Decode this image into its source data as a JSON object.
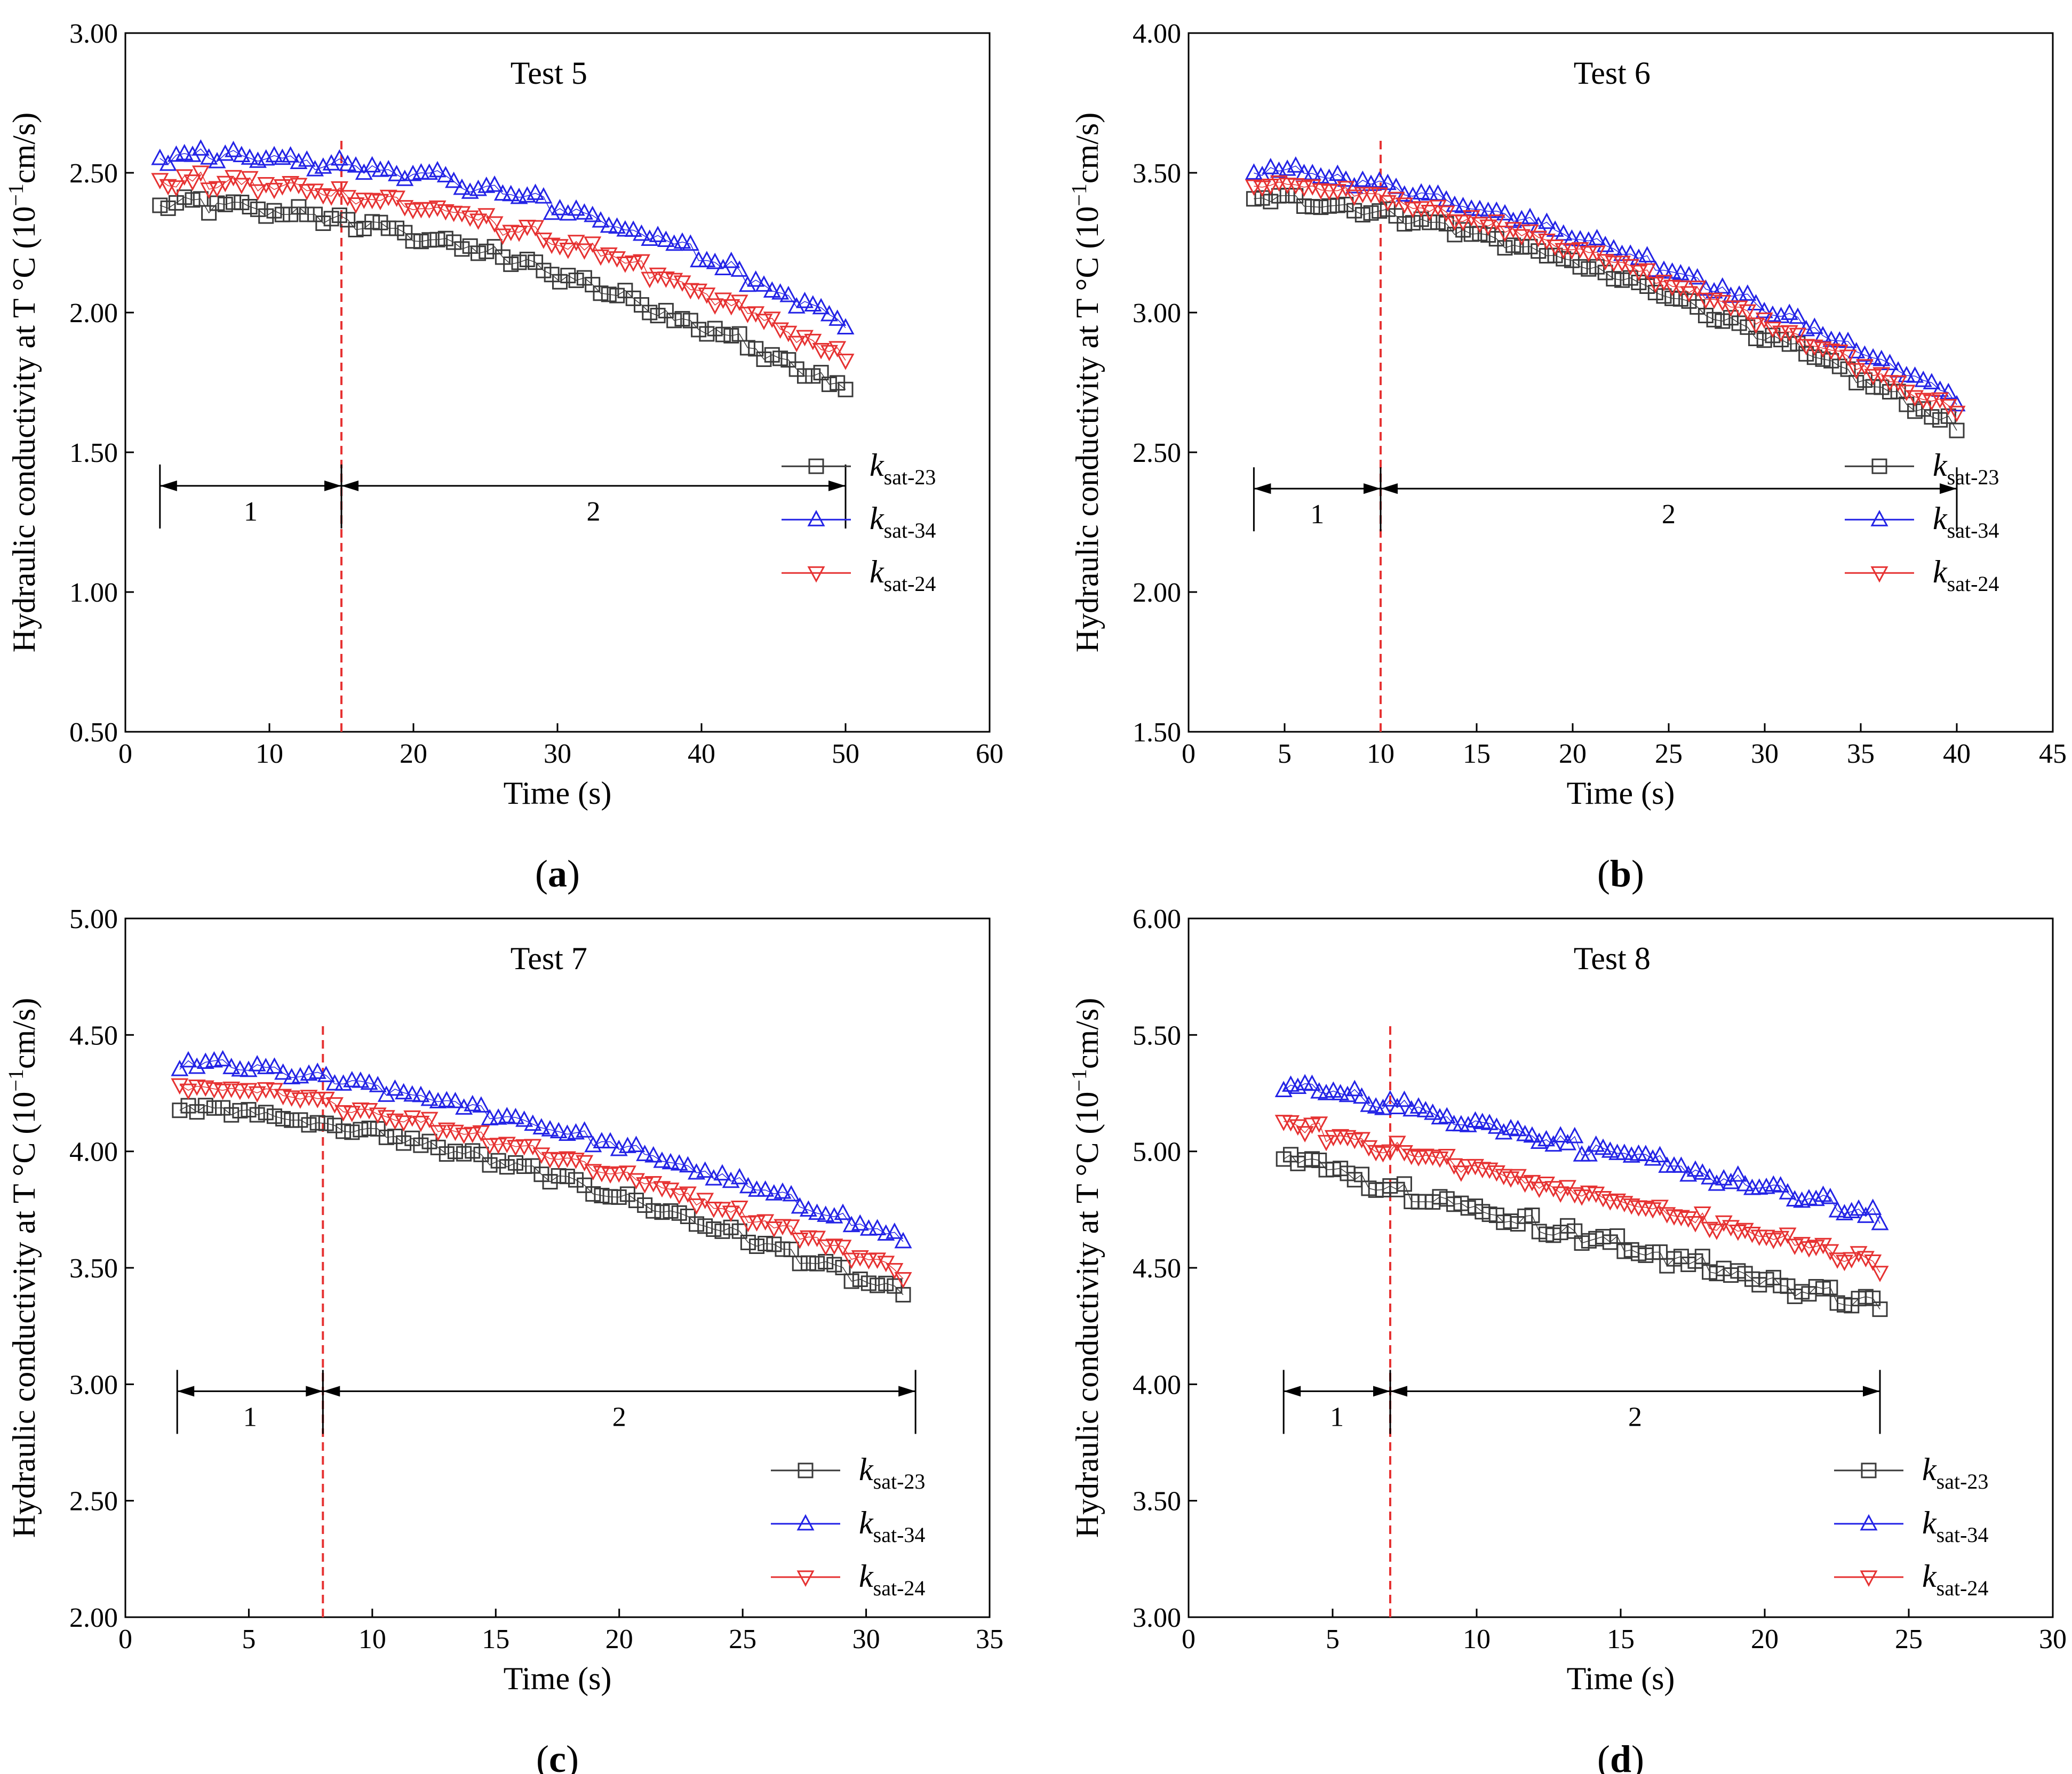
{
  "chart_data": [
    {
      "type": "scatter",
      "title": "Test 5",
      "caption": "a",
      "xlabel": "Time (s)",
      "ylabel": "Hydraulic conductivity at T °C (10",
      "ylabel_exp": "−1",
      "ylabel_unit": "cm/s)",
      "xlim": [
        0,
        60
      ],
      "ylim": [
        0.5,
        3.0
      ],
      "xticks": [
        "0",
        "10",
        "20",
        "30",
        "40",
        "50",
        "60"
      ],
      "yticks": [
        "0.50",
        "1.00",
        "1.50",
        "2.00",
        "2.50",
        "3.00"
      ],
      "divider_x": 15,
      "segments": [
        {
          "label": "1",
          "start": 2.4,
          "end": 15
        },
        {
          "label": "2",
          "start": 15,
          "end": 50
        }
      ],
      "segment_y": 1.38,
      "legend_position": "right-middle",
      "series": [
        {
          "name": "k",
          "sub": "sat-23",
          "color": "#3a3a3a",
          "marker": "square",
          "x_start": 2.4,
          "x_end": 50,
          "start": 2.39,
          "end": 1.72,
          "curve": 1.8,
          "noise": 0.022
        },
        {
          "name": "k",
          "sub": "sat-34",
          "color": "#2323e6",
          "marker": "triangle-up",
          "x_start": 2.4,
          "x_end": 50,
          "start": 2.56,
          "end": 1.96,
          "curve": 2.2,
          "noise": 0.022
        },
        {
          "name": "k",
          "sub": "sat-24",
          "color": "#e63232",
          "marker": "triangle-down",
          "x_start": 2.4,
          "x_end": 50,
          "start": 2.47,
          "end": 1.83,
          "curve": 2.0,
          "noise": 0.022
        }
      ]
    },
    {
      "type": "scatter",
      "title": "Test 6",
      "caption": "b",
      "xlabel": "Time (s)",
      "ylabel": "Hydraulic conductivity at T °C (10",
      "ylabel_exp": "−1",
      "ylabel_unit": "cm/s)",
      "xlim": [
        0,
        45
      ],
      "ylim": [
        1.5,
        4.0
      ],
      "xticks": [
        "0",
        "5",
        "10",
        "15",
        "20",
        "25",
        "30",
        "35",
        "40",
        "45"
      ],
      "yticks": [
        "1.50",
        "2.00",
        "2.50",
        "3.00",
        "3.50",
        "4.00"
      ],
      "divider_x": 10,
      "segments": [
        {
          "label": "1",
          "start": 3.4,
          "end": 10
        },
        {
          "label": "2",
          "start": 10,
          "end": 40
        }
      ],
      "segment_y": 2.37,
      "legend_position": "right-middle",
      "series": [
        {
          "name": "k",
          "sub": "sat-23",
          "color": "#3a3a3a",
          "marker": "square",
          "x_start": 3.4,
          "x_end": 40,
          "start": 3.41,
          "end": 2.59,
          "curve": 1.6,
          "noise": 0.015
        },
        {
          "name": "k",
          "sub": "sat-34",
          "color": "#2323e6",
          "marker": "triangle-up",
          "x_start": 3.4,
          "x_end": 40,
          "start": 3.51,
          "end": 2.69,
          "curve": 1.6,
          "noise": 0.015
        },
        {
          "name": "k",
          "sub": "sat-24",
          "color": "#e63232",
          "marker": "triangle-down",
          "x_start": 3.4,
          "x_end": 40,
          "start": 3.46,
          "end": 2.64,
          "curve": 1.6,
          "noise": 0.015
        }
      ]
    },
    {
      "type": "scatter",
      "title": "Test 7",
      "caption": "c",
      "xlabel": "Time (s)",
      "ylabel": "Hydraulic conductivity at T °C (10",
      "ylabel_exp": "−1",
      "ylabel_unit": "cm/s)",
      "xlim": [
        0,
        35
      ],
      "ylim": [
        2.0,
        5.0
      ],
      "xticks": [
        "0",
        "5",
        "10",
        "15",
        "20",
        "25",
        "30",
        "35"
      ],
      "yticks": [
        "2.00",
        "2.50",
        "3.00",
        "3.50",
        "4.00",
        "4.50",
        "5.00"
      ],
      "divider_x": 8,
      "segments": [
        {
          "label": "1",
          "start": 2.1,
          "end": 8
        },
        {
          "label": "2",
          "start": 8,
          "end": 32
        }
      ],
      "segment_y": 2.97,
      "legend_position": "bottom-right",
      "series": [
        {
          "name": "k",
          "sub": "sat-23",
          "color": "#3a3a3a",
          "marker": "square",
          "x_start": 2.2,
          "x_end": 31.5,
          "start": 4.19,
          "end": 3.38,
          "curve": 1.5,
          "noise": 0.018
        },
        {
          "name": "k",
          "sub": "sat-34",
          "color": "#2323e6",
          "marker": "triangle-up",
          "x_start": 2.2,
          "x_end": 31.5,
          "start": 4.38,
          "end": 3.62,
          "curve": 1.5,
          "noise": 0.018
        },
        {
          "name": "k",
          "sub": "sat-24",
          "color": "#e63232",
          "marker": "triangle-down",
          "x_start": 2.2,
          "x_end": 31.5,
          "start": 4.28,
          "end": 3.48,
          "curve": 1.5,
          "noise": 0.018
        }
      ]
    },
    {
      "type": "scatter",
      "title": "Test 8",
      "caption": "d",
      "xlabel": "Time (s)",
      "ylabel": "Hydraulic conductivity at T °C (10",
      "ylabel_exp": "−1",
      "ylabel_unit": "cm/s)",
      "xlim": [
        0,
        30
      ],
      "ylim": [
        3.0,
        6.0
      ],
      "xticks": [
        "0",
        "5",
        "10",
        "15",
        "20",
        "25",
        "30"
      ],
      "yticks": [
        "3.00",
        "3.50",
        "4.00",
        "4.50",
        "5.00",
        "5.50",
        "6.00"
      ],
      "divider_x": 7,
      "segments": [
        {
          "label": "1",
          "start": 3.3,
          "end": 7
        },
        {
          "label": "2",
          "start": 7,
          "end": 24
        }
      ],
      "segment_y": 3.97,
      "legend_position": "bottom-right",
      "series": [
        {
          "name": "k",
          "sub": "sat-23",
          "color": "#3a3a3a",
          "marker": "square",
          "x_start": 3.3,
          "x_end": 24,
          "start": 4.99,
          "end": 4.33,
          "curve": 0.9,
          "noise": 0.025
        },
        {
          "name": "k",
          "sub": "sat-34",
          "color": "#2323e6",
          "marker": "triangle-up",
          "x_start": 3.3,
          "x_end": 24,
          "start": 5.29,
          "end": 4.72,
          "curve": 1.1,
          "noise": 0.025
        },
        {
          "name": "k",
          "sub": "sat-24",
          "color": "#e63232",
          "marker": "triangle-down",
          "x_start": 3.3,
          "x_end": 24,
          "start": 5.12,
          "end": 4.52,
          "curve": 1.0,
          "noise": 0.025
        }
      ]
    }
  ]
}
